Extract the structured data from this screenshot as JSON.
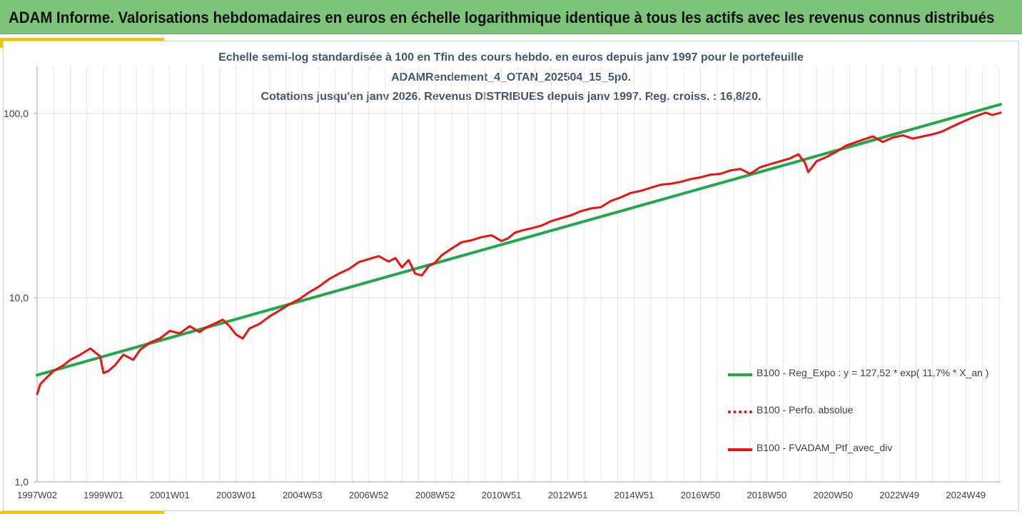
{
  "header": {
    "title": "ADAM Informe. Valorisations hebdomadaires en euros en échelle logarithmique identique à tous les actifs avec les revenus connus distribués"
  },
  "chart_data": {
    "type": "line",
    "title_lines": [
      "Echelle semi-log standardisée à 100 en Tfin des cours hebdo.  en euros depuis janv 1997 pour le portefeuille",
      "ADAMRendement_4_OTAN_202504_15_5p0.",
      "Cotations  jusqu'en janv 2026. Revenus DISTRIBUES depuis janv 1997. Reg. croiss. : 16,8/20."
    ],
    "y_scale": "log",
    "ylim": [
      1,
      180
    ],
    "y_ticks": [
      {
        "value": 1,
        "label": "1,0"
      },
      {
        "value": 10,
        "label": "10,0"
      },
      {
        "value": 100,
        "label": "100,0"
      }
    ],
    "xlim": [
      1997.0,
      2026.05
    ],
    "x_tick_labels": [
      {
        "label": "1997W02",
        "t": 1997.0
      },
      {
        "label": "1999W01",
        "t": 1999.0
      },
      {
        "label": "2001W01",
        "t": 2001.0
      },
      {
        "label": "2003W01",
        "t": 2003.0
      },
      {
        "label": "2004W53",
        "t": 2005.0
      },
      {
        "label": "2006W52",
        "t": 2007.0
      },
      {
        "label": "2008W52",
        "t": 2009.0
      },
      {
        "label": "2010W51",
        "t": 2011.0
      },
      {
        "label": "2012W51",
        "t": 2013.0
      },
      {
        "label": "2014W51",
        "t": 2015.0
      },
      {
        "label": "2016W50",
        "t": 2017.0
      },
      {
        "label": "2018W50",
        "t": 2019.0
      },
      {
        "label": "2020W50",
        "t": 2021.0
      },
      {
        "label": "2022W49",
        "t": 2023.0
      },
      {
        "label": "2024W49",
        "t": 2025.0
      }
    ],
    "grid": true,
    "legend_position": "right",
    "series": [
      {
        "name": "B100 - Reg_Expo : y = 127,52 * exp( 11,7% *  X_an )",
        "color": "#22a84a",
        "style": "solid",
        "x": [
          1997.0,
          2026.05
        ],
        "values": [
          3.8,
          112
        ]
      },
      {
        "name": "B100 - Perfo. absolue",
        "color": "#ee1111",
        "style": "dotted",
        "x": [],
        "values": []
      },
      {
        "name": "B100 - FVADAM_Ptf_avec_div",
        "color": "#ee1111",
        "style": "solid",
        "x": [
          1997.0,
          1997.1,
          1997.3,
          1997.5,
          1997.8,
          1998.0,
          1998.3,
          1998.6,
          1998.9,
          1999.0,
          1999.15,
          1999.35,
          1999.6,
          1999.9,
          2000.1,
          2000.4,
          2000.7,
          2001.0,
          2001.3,
          2001.6,
          2001.9,
          2002.1,
          2002.4,
          2002.6,
          2002.8,
          2003.0,
          2003.2,
          2003.4,
          2003.7,
          2004.0,
          2004.3,
          2004.6,
          2004.9,
          2005.2,
          2005.5,
          2005.8,
          2006.1,
          2006.4,
          2006.7,
          2007.0,
          2007.3,
          2007.6,
          2007.8,
          2008.0,
          2008.2,
          2008.4,
          2008.6,
          2008.8,
          2009.0,
          2009.2,
          2009.5,
          2009.8,
          2010.1,
          2010.4,
          2010.7,
          2011.0,
          2011.2,
          2011.4,
          2011.6,
          2011.9,
          2012.2,
          2012.5,
          2012.8,
          2013.1,
          2013.4,
          2013.7,
          2014.0,
          2014.3,
          2014.6,
          2014.9,
          2015.2,
          2015.5,
          2015.8,
          2016.1,
          2016.4,
          2016.7,
          2017.0,
          2017.3,
          2017.6,
          2017.9,
          2018.2,
          2018.5,
          2018.8,
          2019.1,
          2019.4,
          2019.7,
          2019.95,
          2020.15,
          2020.25,
          2020.5,
          2020.8,
          2021.1,
          2021.4,
          2021.7,
          2022.0,
          2022.2,
          2022.5,
          2022.8,
          2023.1,
          2023.4,
          2023.7,
          2024.0,
          2024.3,
          2024.6,
          2024.9,
          2025.2,
          2025.4,
          2025.6,
          2025.8,
          2026.05
        ],
        "values": [
          3.0,
          3.4,
          3.7,
          4.0,
          4.3,
          4.6,
          4.9,
          5.3,
          4.8,
          3.9,
          4.0,
          4.3,
          4.9,
          4.6,
          5.2,
          5.7,
          6.0,
          6.6,
          6.4,
          7.0,
          6.5,
          6.9,
          7.3,
          7.6,
          7.0,
          6.3,
          6.0,
          6.8,
          7.2,
          7.9,
          8.5,
          9.2,
          9.8,
          10.7,
          11.5,
          12.6,
          13.5,
          14.3,
          15.6,
          16.2,
          16.8,
          15.7,
          16.4,
          14.6,
          16.0,
          13.5,
          13.2,
          14.8,
          15.5,
          17.0,
          18.5,
          20.0,
          20.5,
          21.3,
          21.8,
          20.3,
          21.0,
          22.5,
          23.1,
          23.8,
          24.6,
          26.0,
          27.0,
          28.0,
          29.5,
          30.5,
          31.0,
          33.5,
          35.0,
          37.0,
          38.0,
          39.5,
          41.0,
          41.5,
          42.5,
          44.0,
          45.0,
          46.5,
          47.0,
          49.0,
          50.0,
          47.0,
          51.0,
          53.0,
          55.0,
          57.0,
          60.0,
          54.0,
          48.0,
          55.0,
          58.0,
          62.0,
          67.0,
          70.0,
          73.0,
          75.0,
          70.0,
          74.0,
          76.0,
          73.0,
          75.0,
          77.0,
          80.0,
          85.0,
          90.0,
          95.0,
          98.0,
          101.0,
          98.0,
          101.0
        ]
      }
    ]
  }
}
